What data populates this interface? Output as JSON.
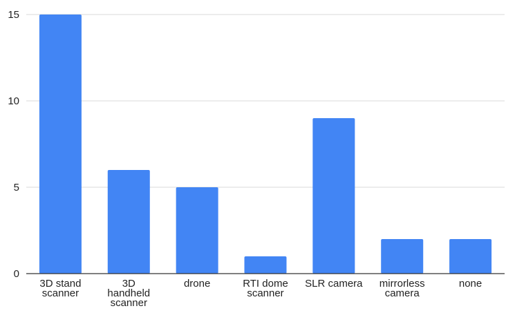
{
  "chart_data": {
    "type": "bar",
    "title": "",
    "xlabel": "",
    "ylabel": "",
    "categories": [
      [
        "3D stand",
        "scanner"
      ],
      [
        "3D",
        "handheld",
        "scanner"
      ],
      [
        "drone"
      ],
      [
        "RTI dome",
        "scanner"
      ],
      [
        "SLR camera"
      ],
      [
        "mirrorless",
        "camera"
      ],
      [
        "none"
      ]
    ],
    "values": [
      15,
      6,
      5,
      1,
      9,
      2,
      2
    ],
    "ylim": [
      0,
      15
    ],
    "yticks": [
      "0",
      "5",
      "10",
      "15"
    ],
    "grid": true,
    "legend": "none",
    "bar_color": "#4285f4",
    "grid_color": "#d9d9d9",
    "axis_color": "#333333"
  }
}
